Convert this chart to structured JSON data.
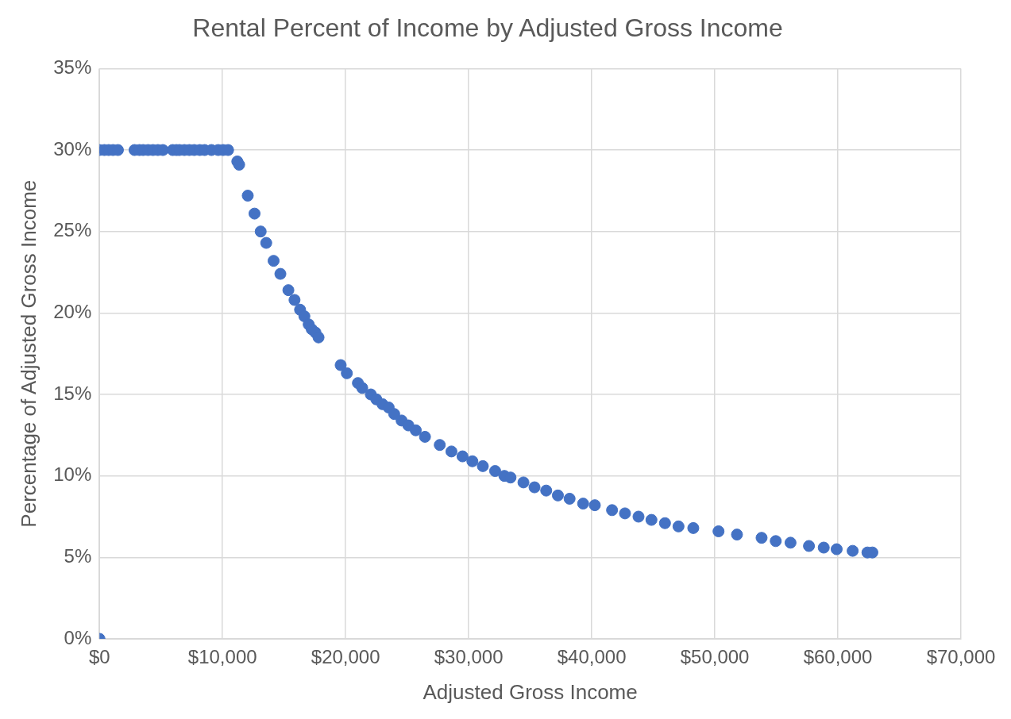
{
  "chart_data": {
    "type": "scatter",
    "title": "Rental Percent of Income by Adjusted Gross Income",
    "xlabel": "Adjusted Gross Income",
    "ylabel": "Percentage of Adjusted Gross Income",
    "color": "#4472c4",
    "marker": "circle",
    "grid": true,
    "legend": false,
    "x": [
      0,
      0,
      400,
      750,
      1100,
      1500,
      2850,
      3250,
      3550,
      3950,
      4350,
      4750,
      5150,
      5950,
      6250,
      6500,
      6900,
      7300,
      7700,
      8150,
      8550,
      9100,
      9650,
      10050,
      10450,
      11200,
      11350,
      12050,
      12600,
      13100,
      13550,
      14150,
      14700,
      15350,
      15850,
      16300,
      16650,
      17000,
      17250,
      17550,
      17800,
      19600,
      20100,
      21000,
      21350,
      22050,
      22500,
      23000,
      23500,
      23950,
      24550,
      25100,
      25700,
      26450,
      27650,
      28600,
      29500,
      30300,
      31150,
      32150,
      32900,
      33400,
      34450,
      35350,
      36300,
      37250,
      38200,
      39300,
      40250,
      41650,
      42700,
      43800,
      44850,
      45950,
      47050,
      48250,
      50300,
      51800,
      53800,
      54950,
      56150,
      57650,
      58850,
      59900,
      61200,
      62400,
      62800
    ],
    "values": [
      0,
      30,
      30,
      30,
      30,
      30,
      30,
      30,
      30,
      30,
      30,
      30,
      30,
      30,
      30,
      30,
      30,
      30,
      30,
      30,
      30,
      30,
      30,
      30,
      30,
      29.3,
      29.1,
      27.2,
      26.1,
      25.0,
      24.3,
      23.2,
      22.4,
      21.4,
      20.8,
      20.2,
      19.8,
      19.3,
      19.0,
      18.8,
      18.5,
      16.8,
      16.3,
      15.7,
      15.4,
      15.0,
      14.7,
      14.4,
      14.2,
      13.8,
      13.4,
      13.1,
      12.8,
      12.4,
      11.9,
      11.5,
      11.2,
      10.9,
      10.6,
      10.3,
      10.0,
      9.9,
      9.6,
      9.3,
      9.1,
      8.8,
      8.6,
      8.3,
      8.2,
      7.9,
      7.7,
      7.5,
      7.3,
      7.1,
      6.9,
      6.8,
      6.6,
      6.4,
      6.2,
      6.0,
      5.9,
      5.7,
      5.6,
      5.5,
      5.4,
      5.3,
      5.3
    ],
    "xlim": [
      0,
      70000
    ],
    "xticks": [
      {
        "value": 0,
        "label": "$0"
      },
      {
        "value": 10000,
        "label": "$10,000"
      },
      {
        "value": 20000,
        "label": "$20,000"
      },
      {
        "value": 30000,
        "label": "$30,000"
      },
      {
        "value": 40000,
        "label": "$40,000"
      },
      {
        "value": 50000,
        "label": "$50,000"
      },
      {
        "value": 60000,
        "label": "$60,000"
      },
      {
        "value": 70000,
        "label": "$70,000"
      }
    ],
    "ylim": [
      0,
      35
    ],
    "yticks": [
      {
        "value": 0,
        "label": "0%"
      },
      {
        "value": 5,
        "label": "5%"
      },
      {
        "value": 10,
        "label": "10%"
      },
      {
        "value": 15,
        "label": "15%"
      },
      {
        "value": 20,
        "label": "20%"
      },
      {
        "value": 25,
        "label": "25%"
      },
      {
        "value": 30,
        "label": "30%"
      },
      {
        "value": 35,
        "label": "35%"
      }
    ]
  }
}
